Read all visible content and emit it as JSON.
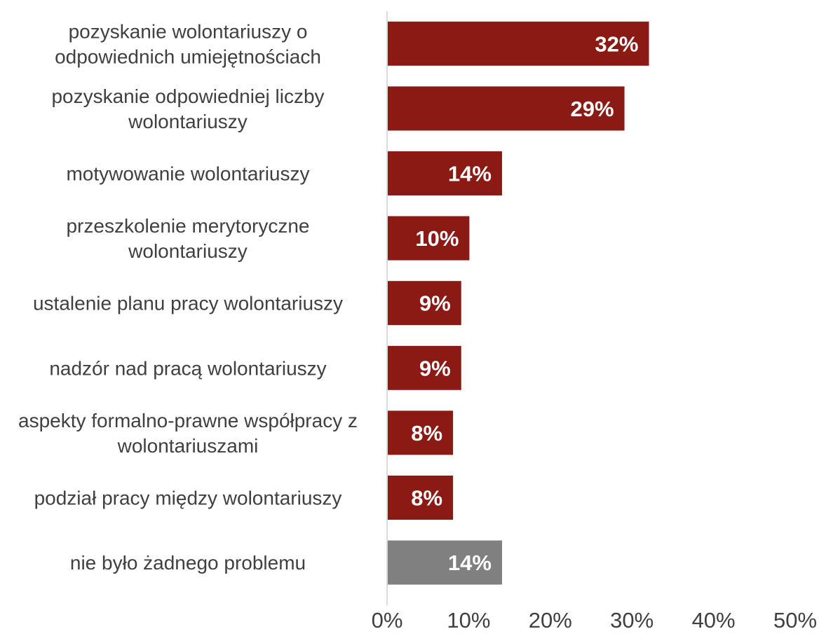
{
  "chart_data": {
    "type": "bar",
    "orientation": "horizontal",
    "categories": [
      [
        "pozyskanie wolontariuszy o",
        "odpowiednich umiejętnościach"
      ],
      [
        "pozyskanie odpowiedniej liczby",
        "wolontariuszy"
      ],
      [
        "motywowanie wolontariuszy"
      ],
      [
        "przeszkolenie merytoryczne",
        "wolontariuszy"
      ],
      [
        "ustalenie planu pracy wolontariuszy"
      ],
      [
        "nadzór nad pracą wolontariuszy"
      ],
      [
        "aspekty formalno-prawne współpracy z",
        "wolontariuszami"
      ],
      [
        "podział pracy między wolontariuszy"
      ],
      [
        "nie było żadnego problemu"
      ]
    ],
    "values": [
      32,
      29,
      14,
      10,
      9,
      9,
      8,
      8,
      14
    ],
    "value_labels": [
      "32%",
      "29%",
      "14%",
      "10%",
      "9%",
      "9%",
      "8%",
      "8%",
      "14%"
    ],
    "xlim": [
      0,
      50
    ],
    "x_ticks": [
      "0%",
      "10%",
      "20%",
      "30%",
      "40%",
      "50%"
    ],
    "x_tick_values": [
      0,
      10,
      20,
      30,
      40,
      50
    ],
    "title": "",
    "xlabel": "",
    "ylabel": "",
    "grid": false,
    "legend": "none",
    "colors": {
      "primary": "#8b1a14",
      "last": "#808080",
      "axis": "#d9d9d9",
      "text": "#404040",
      "value_text": "#ffffff"
    }
  }
}
